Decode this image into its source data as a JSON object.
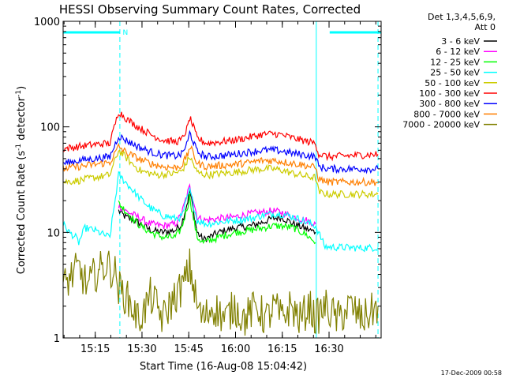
{
  "chart_data": {
    "type": "line",
    "title": "HESSI Observing Summary Count Rates, Corrected",
    "xlabel": "Start Time (16-Aug-08 15:04:42)",
    "ylabel_main": "Corrected Count Rate (s",
    "ylabel_sup1": "-1",
    "ylabel_mid": " detector",
    "ylabel_sup2": "-1",
    "ylabel_end": ")",
    "y_scale": "log",
    "ylim": [
      1,
      1000
    ],
    "xlim_minutes": [
      0,
      102
    ],
    "x_ticks": [
      {
        "label": "15:15",
        "minute": 10.3
      },
      {
        "label": "15:30",
        "minute": 25.3
      },
      {
        "label": "15:45",
        "minute": 40.3
      },
      {
        "label": "16:00",
        "minute": 55.3
      },
      {
        "label": "16:15",
        "minute": 70.3
      },
      {
        "label": "16:30",
        "minute": 85.3
      }
    ],
    "y_ticks": [
      {
        "label": "1",
        "value": 1
      },
      {
        "label": "10",
        "value": 10
      },
      {
        "label": "100",
        "value": 100
      },
      {
        "label": "1000",
        "value": 1000
      }
    ],
    "legend_header": [
      "Det 1,3,4,5,6,9,",
      "Att 0"
    ],
    "legend_placement": "right",
    "night_markers": {
      "color": "#00ffff",
      "bars": [
        [
          0,
          18.2
        ],
        [
          85.5,
          102
        ]
      ],
      "night_start_lines": [
        18.2,
        101
      ],
      "night_end_lines": [
        81.2
      ],
      "saa_label": "N",
      "saa_minute": 18.6
    },
    "series": [
      {
        "name": "3 - 6 keV",
        "color": "#000000",
        "points": [
          [
            17.8,
            16
          ],
          [
            20,
            14
          ],
          [
            24,
            12.5
          ],
          [
            28,
            10.5
          ],
          [
            32,
            10
          ],
          [
            36,
            10.5
          ],
          [
            38,
            12
          ],
          [
            40,
            20
          ],
          [
            40.6,
            25
          ],
          [
            41.5,
            18
          ],
          [
            43,
            10
          ],
          [
            45,
            8.5
          ],
          [
            50,
            10
          ],
          [
            55,
            11
          ],
          [
            60,
            11.5
          ],
          [
            64,
            12.5
          ],
          [
            67,
            13.5
          ],
          [
            70,
            14
          ],
          [
            74,
            12
          ],
          [
            78,
            10.8
          ],
          [
            81,
            10
          ]
        ]
      },
      {
        "name": "6 - 12 keV",
        "color": "#ff00ff",
        "points": [
          [
            17.8,
            18
          ],
          [
            20,
            16
          ],
          [
            24,
            14
          ],
          [
            28,
            12
          ],
          [
            32,
            11.5
          ],
          [
            36,
            12
          ],
          [
            38,
            15
          ],
          [
            40,
            24
          ],
          [
            40.6,
            27
          ],
          [
            41.5,
            22
          ],
          [
            43,
            14
          ],
          [
            45,
            13
          ],
          [
            50,
            13.5
          ],
          [
            55,
            14
          ],
          [
            60,
            15
          ],
          [
            64,
            15.5
          ],
          [
            67,
            16
          ],
          [
            70,
            15.5
          ],
          [
            74,
            14
          ],
          [
            78,
            13
          ],
          [
            81,
            12
          ]
        ]
      },
      {
        "name": "12 - 25 keV",
        "color": "#00ff00",
        "points": [
          [
            17.8,
            19
          ],
          [
            20,
            16
          ],
          [
            24,
            12
          ],
          [
            28,
            10
          ],
          [
            32,
            9
          ],
          [
            36,
            9
          ],
          [
            38,
            11
          ],
          [
            40,
            18
          ],
          [
            40.6,
            22
          ],
          [
            41.5,
            15
          ],
          [
            43,
            9
          ],
          [
            45,
            8
          ],
          [
            50,
            9
          ],
          [
            55,
            10
          ],
          [
            60,
            10.5
          ],
          [
            64,
            11
          ],
          [
            67,
            11.5
          ],
          [
            70,
            11.5
          ],
          [
            74,
            11
          ],
          [
            78,
            9.5
          ],
          [
            81,
            8
          ]
        ]
      },
      {
        "name": "25 - 50 keV",
        "color": "#00ffff",
        "points": [
          [
            0,
            12
          ],
          [
            2,
            10
          ],
          [
            4,
            9
          ],
          [
            5,
            8
          ],
          [
            7,
            11
          ],
          [
            10,
            10.5
          ],
          [
            13,
            9.5
          ],
          [
            15,
            9
          ],
          [
            17.8,
            35
          ],
          [
            20,
            30
          ],
          [
            24,
            22
          ],
          [
            28,
            17
          ],
          [
            32,
            14.5
          ],
          [
            36,
            13.5
          ],
          [
            38,
            14
          ],
          [
            40,
            22
          ],
          [
            40.6,
            25
          ],
          [
            41.5,
            20
          ],
          [
            43,
            13
          ],
          [
            46,
            12
          ],
          [
            50,
            12.5
          ],
          [
            55,
            13
          ],
          [
            60,
            13.5
          ],
          [
            64,
            14.5
          ],
          [
            67,
            15
          ],
          [
            70,
            15
          ],
          [
            74,
            14
          ],
          [
            78,
            12.5
          ],
          [
            81,
            11.5
          ],
          [
            84,
            7.3
          ],
          [
            90,
            7.2
          ],
          [
            96,
            7.1
          ],
          [
            101,
            7.2
          ]
        ]
      },
      {
        "name": "50 - 100 keV",
        "color": "#cccc00",
        "points": [
          [
            0,
            30
          ],
          [
            5,
            31
          ],
          [
            10,
            33
          ],
          [
            15,
            35
          ],
          [
            17.8,
            60
          ],
          [
            20,
            52
          ],
          [
            22,
            45
          ],
          [
            25,
            38
          ],
          [
            30,
            35
          ],
          [
            35,
            36
          ],
          [
            38,
            38
          ],
          [
            40,
            48
          ],
          [
            40.6,
            52
          ],
          [
            41.5,
            46
          ],
          [
            43,
            37
          ],
          [
            46,
            35
          ],
          [
            50,
            36
          ],
          [
            55,
            37
          ],
          [
            60,
            39
          ],
          [
            64,
            40
          ],
          [
            67,
            40
          ],
          [
            70,
            39
          ],
          [
            74,
            36
          ],
          [
            78,
            34
          ],
          [
            81,
            33
          ],
          [
            82,
            24
          ],
          [
            85,
            23
          ],
          [
            90,
            23
          ],
          [
            95,
            23
          ],
          [
            101,
            23
          ]
        ]
      },
      {
        "name": "100 - 300 keV",
        "color": "#ff0000",
        "points": [
          [
            0,
            62
          ],
          [
            5,
            65
          ],
          [
            10,
            68
          ],
          [
            15,
            70
          ],
          [
            17.8,
            140
          ],
          [
            19,
            130
          ],
          [
            21,
            115
          ],
          [
            24,
            100
          ],
          [
            28,
            85
          ],
          [
            32,
            75
          ],
          [
            36,
            72
          ],
          [
            38,
            75
          ],
          [
            40,
            100
          ],
          [
            40.6,
            122
          ],
          [
            41.5,
            105
          ],
          [
            43,
            78
          ],
          [
            46,
            70
          ],
          [
            50,
            72
          ],
          [
            55,
            75
          ],
          [
            60,
            80
          ],
          [
            64,
            85
          ],
          [
            68,
            86
          ],
          [
            70,
            84
          ],
          [
            74,
            78
          ],
          [
            78,
            73
          ],
          [
            81,
            70
          ],
          [
            82,
            55
          ],
          [
            85,
            52
          ],
          [
            90,
            53
          ],
          [
            95,
            54
          ],
          [
            101,
            55
          ]
        ]
      },
      {
        "name": "300 - 800 keV",
        "color": "#0000ff",
        "points": [
          [
            0,
            45
          ],
          [
            5,
            48
          ],
          [
            10,
            50
          ],
          [
            15,
            52
          ],
          [
            17.8,
            82
          ],
          [
            20,
            75
          ],
          [
            24,
            65
          ],
          [
            28,
            58
          ],
          [
            32,
            54
          ],
          [
            36,
            53
          ],
          [
            38,
            55
          ],
          [
            40,
            72
          ],
          [
            40.6,
            88
          ],
          [
            41.5,
            76
          ],
          [
            43,
            58
          ],
          [
            46,
            52
          ],
          [
            50,
            53
          ],
          [
            55,
            55
          ],
          [
            60,
            58
          ],
          [
            64,
            60
          ],
          [
            68,
            60
          ],
          [
            70,
            59
          ],
          [
            74,
            56
          ],
          [
            78,
            54
          ],
          [
            81,
            52
          ],
          [
            82,
            42
          ],
          [
            85,
            40
          ],
          [
            90,
            40
          ],
          [
            95,
            40
          ],
          [
            101,
            40
          ]
        ]
      },
      {
        "name": "800 - 7000 keV",
        "color": "#ff7f00",
        "points": [
          [
            0,
            40
          ],
          [
            5,
            42
          ],
          [
            10,
            44
          ],
          [
            15,
            46
          ],
          [
            17.8,
            65
          ],
          [
            20,
            58
          ],
          [
            24,
            50
          ],
          [
            28,
            45
          ],
          [
            32,
            42
          ],
          [
            36,
            41
          ],
          [
            38,
            43
          ],
          [
            40,
            55
          ],
          [
            40.6,
            65
          ],
          [
            41.5,
            58
          ],
          [
            43,
            45
          ],
          [
            46,
            42
          ],
          [
            50,
            43
          ],
          [
            55,
            44
          ],
          [
            60,
            46
          ],
          [
            64,
            48
          ],
          [
            68,
            48
          ],
          [
            70,
            47
          ],
          [
            74,
            45
          ],
          [
            78,
            43
          ],
          [
            81,
            41
          ],
          [
            82,
            32
          ],
          [
            85,
            30
          ],
          [
            90,
            30
          ],
          [
            95,
            30
          ],
          [
            101,
            30
          ]
        ]
      },
      {
        "name": "7000 - 20000 keV",
        "color": "#808000",
        "points": [
          [
            0,
            3
          ],
          [
            3,
            4
          ],
          [
            5,
            4.5
          ],
          [
            8,
            3
          ],
          [
            10,
            4
          ],
          [
            14,
            5
          ],
          [
            17,
            4
          ],
          [
            17.8,
            3
          ],
          [
            20,
            2.5
          ],
          [
            22,
            2
          ],
          [
            24,
            1.5
          ],
          [
            26,
            1.8
          ],
          [
            28,
            2.5
          ],
          [
            30,
            2
          ],
          [
            32,
            1.5
          ],
          [
            34,
            2
          ],
          [
            36,
            2.5
          ],
          [
            38,
            3
          ],
          [
            40,
            4
          ],
          [
            40.6,
            4.8
          ],
          [
            41.5,
            3.5
          ],
          [
            43,
            2
          ],
          [
            45,
            1.5
          ],
          [
            48,
            2
          ],
          [
            52,
            1.5
          ],
          [
            55,
            2
          ],
          [
            58,
            1.5
          ],
          [
            62,
            2
          ],
          [
            65,
            1.5
          ],
          [
            68,
            2
          ],
          [
            70,
            1.5
          ],
          [
            73,
            2
          ],
          [
            76,
            1.5
          ],
          [
            79,
            2
          ],
          [
            81,
            1.5
          ],
          [
            84,
            2
          ],
          [
            88,
            1.5
          ],
          [
            92,
            2
          ],
          [
            96,
            1.5
          ],
          [
            101,
            2
          ]
        ]
      }
    ]
  },
  "footer_date": "17-Dec-2009 00:58"
}
